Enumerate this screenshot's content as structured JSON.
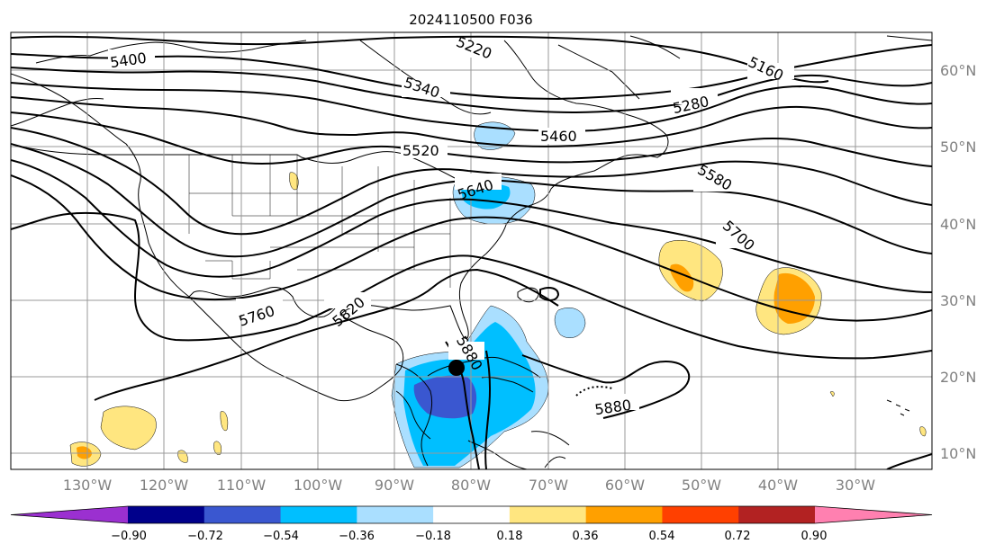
{
  "title": "2024110500 F036",
  "map": {
    "lon_labels": [
      "130°W",
      "120°W",
      "110°W",
      "100°W",
      "90°W",
      "80°W",
      "70°W",
      "60°W",
      "50°W",
      "40°W",
      "30°W"
    ],
    "lat_labels": [
      "60°N",
      "50°N",
      "40°N",
      "30°N",
      "20°N",
      "10°N"
    ],
    "lon_range": [
      -142,
      -22
    ],
    "lat_range": [
      8,
      65
    ],
    "gridlines": true
  },
  "contour_labels": [
    "5400",
    "5220",
    "5340",
    "5280",
    "5160",
    "5460",
    "5520",
    "5640",
    "5580",
    "5700",
    "5760",
    "5820",
    "5880",
    "5880"
  ],
  "colorbar": {
    "ticks": [
      "−0.90",
      "−0.72",
      "−0.54",
      "−0.36",
      "−0.18",
      "0.18",
      "0.36",
      "0.54",
      "0.72",
      "0.90"
    ],
    "colors": [
      "#9b30d0",
      "#00008b",
      "#3a57d0",
      "#00bfff",
      "#aadfff",
      "#ffffff",
      "#ffe680",
      "#ffa000",
      "#ff4000",
      "#b22222",
      "#ff80b0"
    ],
    "extend": "both"
  },
  "marker": {
    "name": "storm-center",
    "lon": -81.5,
    "lat": 21.2
  }
}
